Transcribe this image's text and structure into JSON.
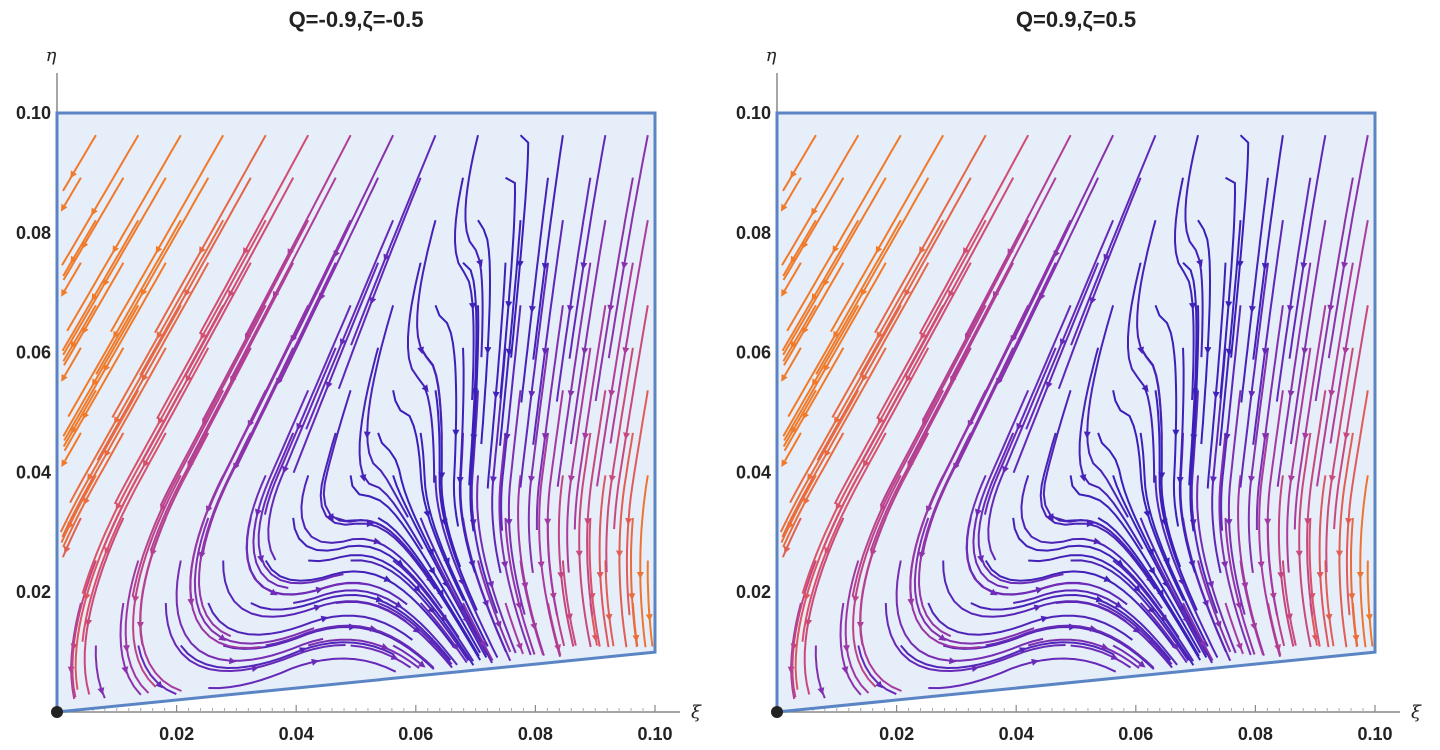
{
  "chart_data": [
    {
      "type": "streamplot",
      "title": "Q=-0.9,ζ=-0.5",
      "xlabel": "ξ",
      "ylabel": "η",
      "xlim": [
        0,
        0.1
      ],
      "ylim": [
        0,
        0.1
      ],
      "x_ticks": [
        "0.02",
        "0.04",
        "0.06",
        "0.08",
        "0.10"
      ],
      "y_ticks": [
        "0.02",
        "0.04",
        "0.06",
        "0.08",
        "0.10"
      ],
      "region": [
        [
          0,
          0
        ],
        [
          0.1,
          0.01
        ],
        [
          0.1,
          0.1
        ],
        [
          0,
          0.1
        ]
      ],
      "region_fill": "#e6eef9",
      "region_edge": "#5b84c4",
      "colormap": [
        "#3a1fb8",
        "#6a2ab8",
        "#a83aa0",
        "#d8506a",
        "#f07a2a"
      ],
      "critical_point": [
        0,
        0
      ]
    },
    {
      "type": "streamplot",
      "title": "Q=0.9,ζ=0.5",
      "xlabel": "ξ",
      "ylabel": "η",
      "xlim": [
        0,
        0.1
      ],
      "ylim": [
        0,
        0.1
      ],
      "x_ticks": [
        "0.02",
        "0.04",
        "0.06",
        "0.08",
        "0.10"
      ],
      "y_ticks": [
        "0.02",
        "0.04",
        "0.06",
        "0.08",
        "0.10"
      ],
      "region": [
        [
          0,
          0
        ],
        [
          0.1,
          0.01
        ],
        [
          0.1,
          0.1
        ],
        [
          0,
          0.1
        ]
      ],
      "region_fill": "#e6eef9",
      "region_edge": "#5b84c4",
      "colormap": [
        "#3a1fb8",
        "#6a2ab8",
        "#a83aa0",
        "#d8506a",
        "#f07a2a"
      ],
      "critical_point": [
        0,
        0
      ]
    }
  ]
}
